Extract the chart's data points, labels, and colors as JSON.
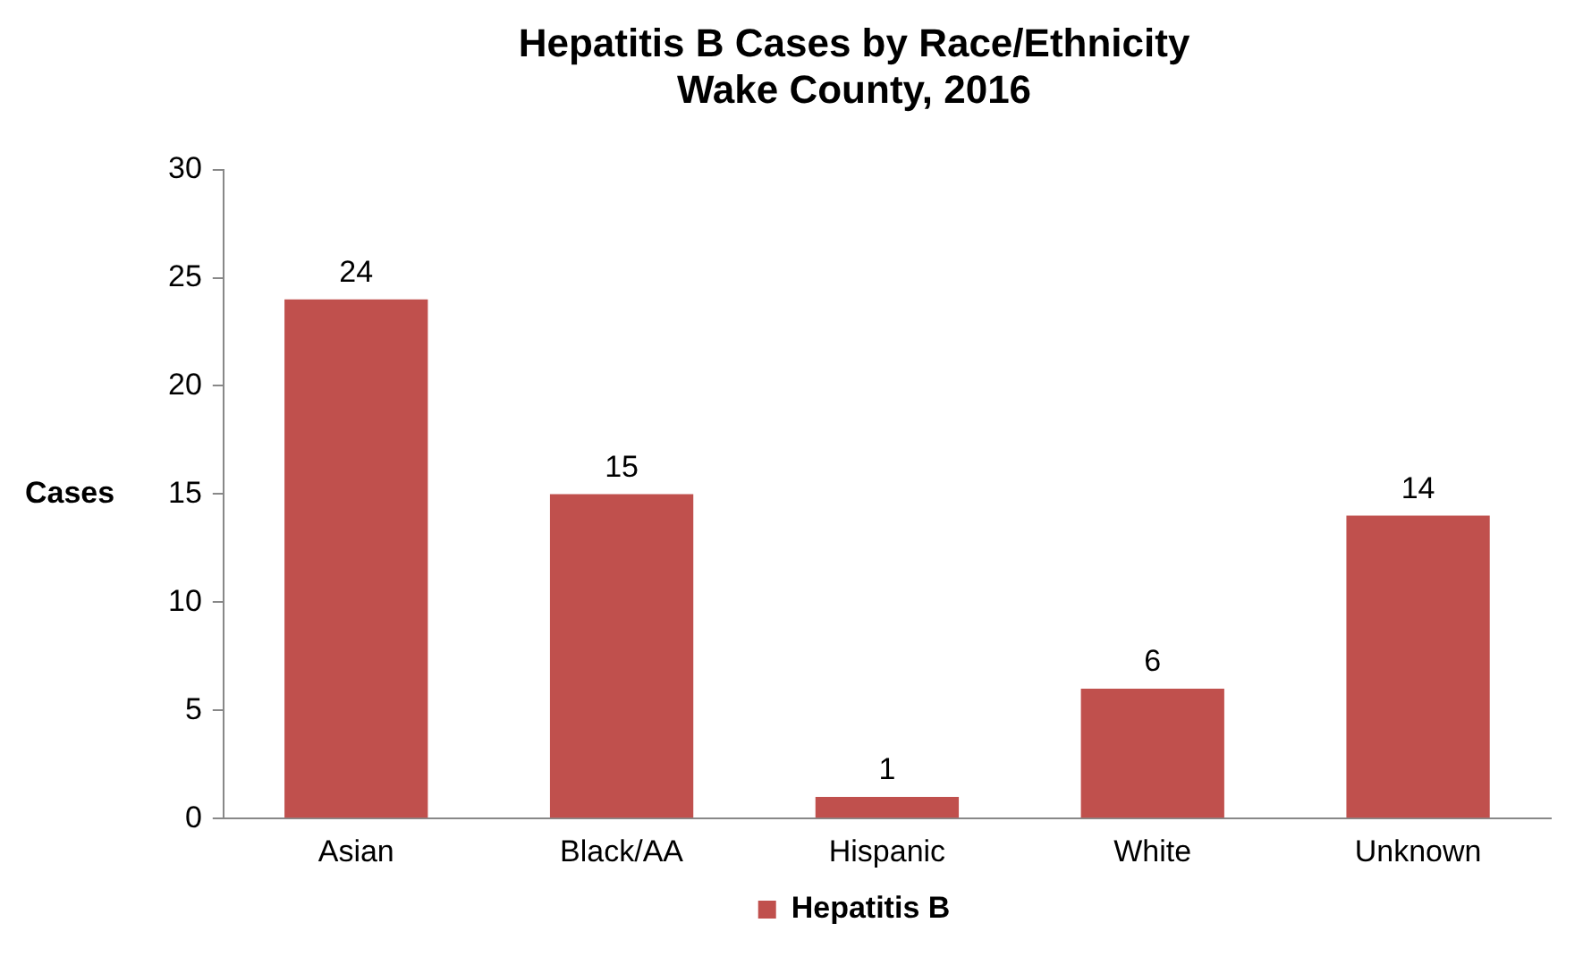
{
  "chart_data": {
    "type": "bar",
    "title": "Hepatitis B Cases by Race/Ethnicity\nWake County, 2016",
    "ylabel": "Cases",
    "categories": [
      "Asian",
      "Black/AA",
      "Hispanic",
      "White",
      "Unknown"
    ],
    "series": [
      {
        "name": "Hepatitis B",
        "color": "#c0504d",
        "values": [
          24,
          15,
          1,
          6,
          14
        ]
      }
    ],
    "ylim": [
      0,
      30
    ],
    "yticks": [
      0,
      5,
      10,
      15,
      20,
      25,
      30
    ],
    "grid": false,
    "legend": "bottom",
    "data_labels": true
  }
}
